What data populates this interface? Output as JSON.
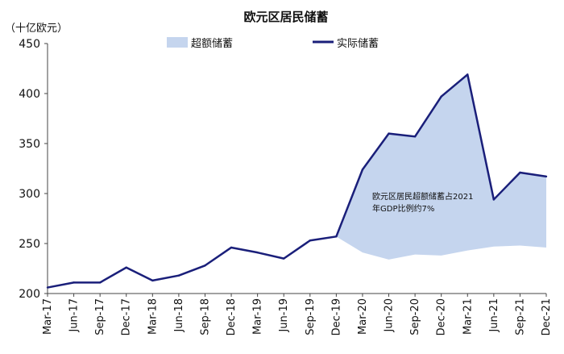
{
  "chart_data": {
    "type": "line",
    "title": "欧元区居民储蓄",
    "unit_label": "（十亿欧元）",
    "categories": [
      "Mar-17",
      "Jun-17",
      "Sep-17",
      "Dec-17",
      "Mar-18",
      "Jun-18",
      "Sep-18",
      "Dec-18",
      "Mar-19",
      "Jun-19",
      "Sep-19",
      "Dec-19",
      "Mar-20",
      "Jun-20",
      "Sep-20",
      "Dec-20",
      "Mar-21",
      "Jun-21",
      "Sep-21",
      "Dec-21"
    ],
    "series": [
      {
        "name": "实际储蓄",
        "color": "#1a1f7a",
        "values": [
          206,
          211,
          211,
          226,
          213,
          218,
          228,
          246,
          241,
          235,
          253,
          257,
          324,
          360,
          357,
          397,
          419,
          294,
          321,
          317
        ]
      },
      {
        "name": "超额储蓄",
        "color": "#c5d5ee",
        "baseline_values": [
          null,
          null,
          null,
          null,
          null,
          null,
          null,
          null,
          null,
          null,
          null,
          257,
          241,
          234,
          239,
          238,
          243,
          247,
          248,
          246
        ]
      }
    ],
    "yticks": [
      200,
      250,
      300,
      350,
      400,
      450
    ],
    "ylim": [
      200,
      450
    ],
    "annotation": [
      "欧元区居民超额储蓄占2021",
      "年GDP比例约7%"
    ],
    "legend_position": "top",
    "grid": false
  }
}
